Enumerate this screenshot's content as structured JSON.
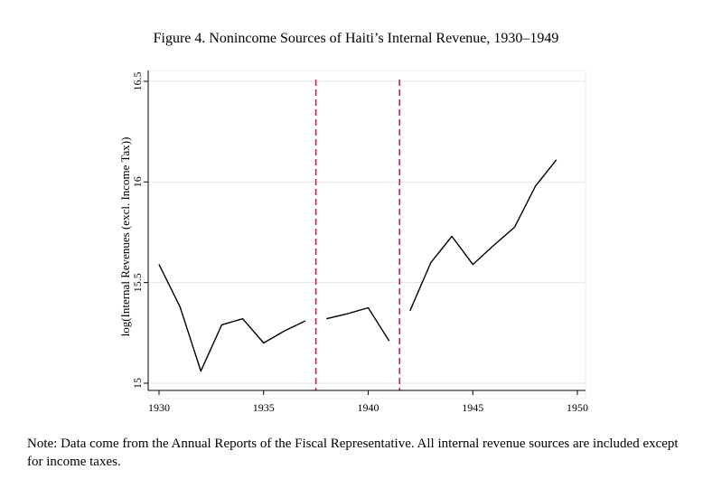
{
  "title": "Figure 4. Nonincome Sources of Haiti’s Internal Revenue, 1930–1949",
  "note": "Note: Data come from the Annual Reports of the Fiscal Representative. All internal revenue sources are included except for income taxes.",
  "chart_data": {
    "type": "line",
    "title": "Figure 4. Nonincome Sources of Haiti’s Internal Revenue, 1930–1949",
    "xlabel": "",
    "ylabel": "log(Internal Revenues (excl. Income Tax))",
    "xlim": [
      1930,
      1950
    ],
    "ylim": [
      15,
      16.5
    ],
    "xticks": [
      1930,
      1935,
      1940,
      1945,
      1950
    ],
    "yticks": [
      15,
      15.5,
      16,
      16.5
    ],
    "ytick_labels": [
      "15",
      "15.5",
      "16",
      "16.5"
    ],
    "grid": "horizontal",
    "legend": "none",
    "line_color": "#000000",
    "vline_color": "#c0284f",
    "vlines": [
      1937.5,
      1941.5
    ],
    "segments": [
      {
        "x": [
          1930,
          1931,
          1932,
          1933,
          1934,
          1935,
          1936,
          1937
        ],
        "y": [
          15.59,
          15.38,
          15.06,
          15.29,
          15.32,
          15.2,
          15.26,
          15.31
        ]
      },
      {
        "x": [
          1938,
          1939,
          1940,
          1941
        ],
        "y": [
          15.32,
          15.345,
          15.375,
          15.21
        ]
      },
      {
        "x": [
          1942,
          1943,
          1944,
          1945,
          1946,
          1947,
          1948,
          1949
        ],
        "y": [
          15.36,
          15.6,
          15.73,
          15.59,
          15.685,
          15.775,
          15.98,
          16.11
        ]
      }
    ]
  }
}
